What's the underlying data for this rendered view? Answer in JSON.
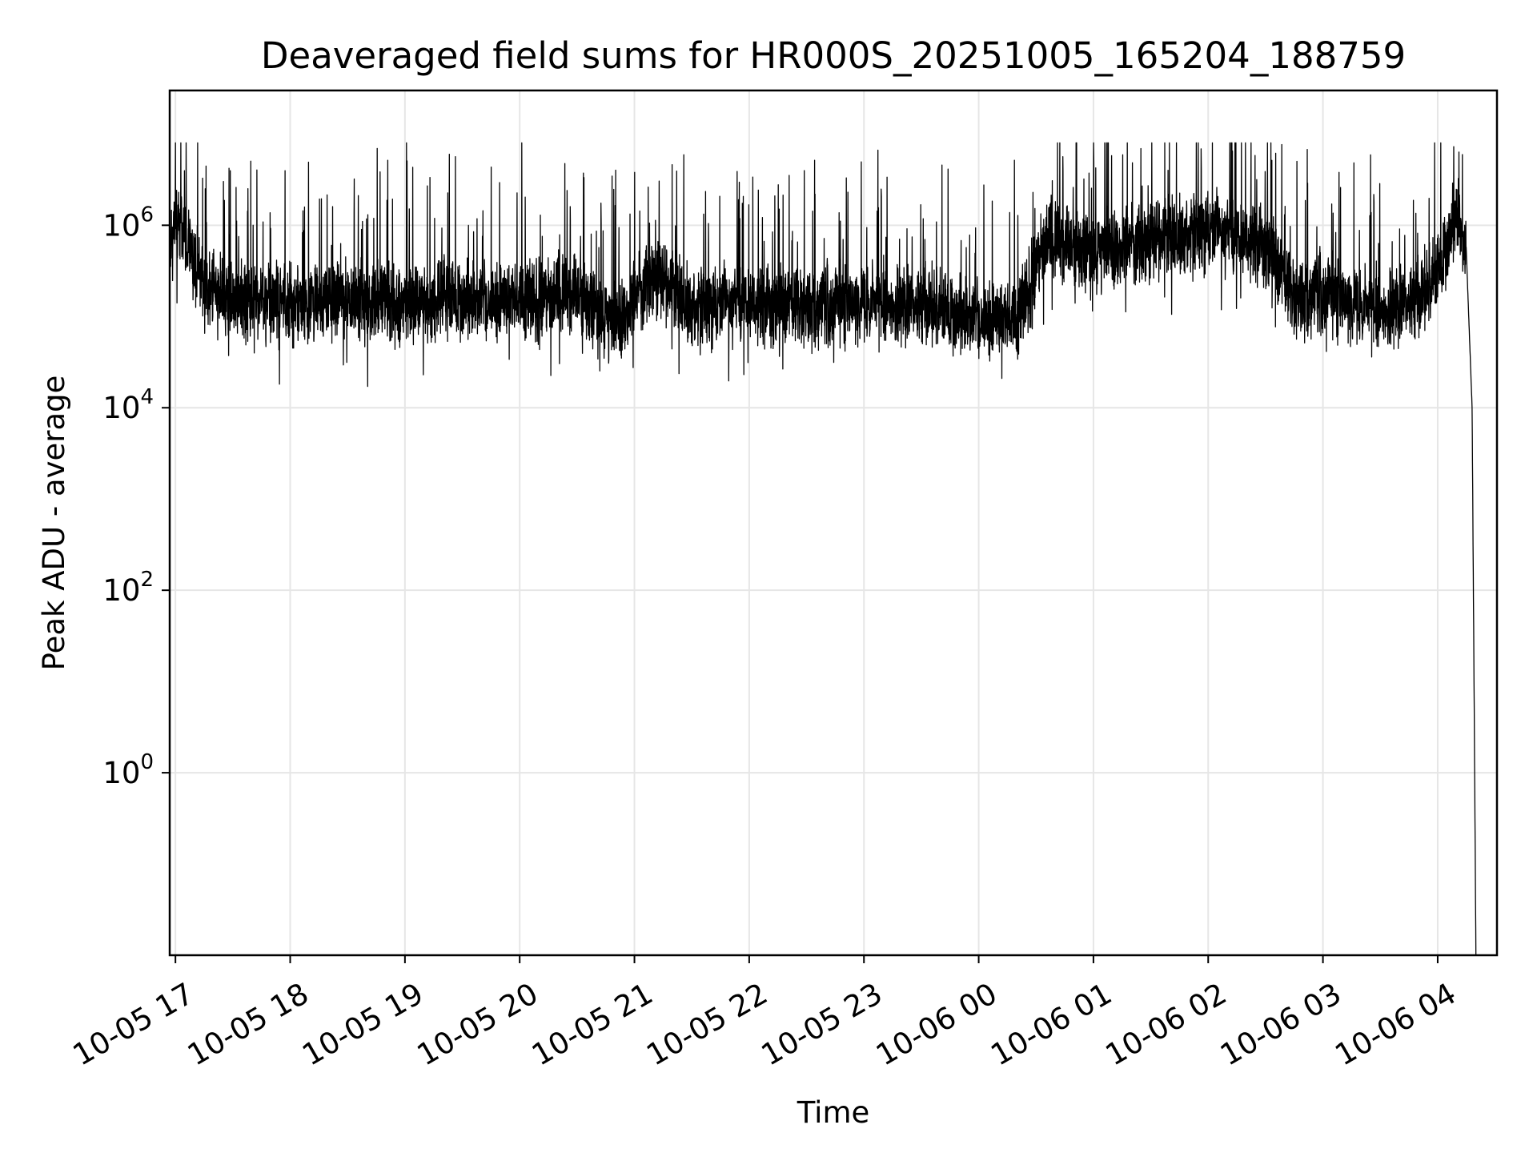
{
  "chart_data": {
    "type": "line",
    "title": "Deaveraged field sums for HR000S_20251005_165204_188759",
    "xlabel": "Time",
    "ylabel": "Peak ADU - average",
    "yscale": "log",
    "grid": true,
    "legend": "none",
    "line_color": "#000000",
    "xlim": [
      "2025-10-05 16:57",
      "2025-10-06 04:31"
    ],
    "ylim": [
      0.01,
      30000000
    ],
    "x_ticks": [
      {
        "value": "2025-10-05 17:00",
        "label": "10-05 17"
      },
      {
        "value": "2025-10-05 18:00",
        "label": "10-05 18"
      },
      {
        "value": "2025-10-05 19:00",
        "label": "10-05 19"
      },
      {
        "value": "2025-10-05 20:00",
        "label": "10-05 20"
      },
      {
        "value": "2025-10-05 21:00",
        "label": "10-05 21"
      },
      {
        "value": "2025-10-05 22:00",
        "label": "10-05 22"
      },
      {
        "value": "2025-10-05 23:00",
        "label": "10-05 23"
      },
      {
        "value": "2025-10-06 00:00",
        "label": "10-06 00"
      },
      {
        "value": "2025-10-06 01:00",
        "label": "10-06 01"
      },
      {
        "value": "2025-10-06 02:00",
        "label": "10-06 02"
      },
      {
        "value": "2025-10-06 03:00",
        "label": "10-06 03"
      },
      {
        "value": "2025-10-06 04:00",
        "label": "10-06 04"
      }
    ],
    "y_ticks": [
      {
        "value": 1,
        "base": "10",
        "exp": "0"
      },
      {
        "value": 100,
        "base": "10",
        "exp": "2"
      },
      {
        "value": 10000,
        "base": "10",
        "exp": "4"
      },
      {
        "value": 1000000,
        "base": "10",
        "exp": "6"
      }
    ],
    "series": [
      {
        "points": [
          [
            "2025-10-05 16:57",
            600000
          ],
          [
            "2025-10-05 17:00",
            1000000
          ],
          [
            "2025-10-05 17:05",
            800000
          ],
          [
            "2025-10-05 17:15",
            200000
          ],
          [
            "2025-10-05 17:30",
            150000
          ],
          [
            "2025-10-05 18:00",
            140000
          ],
          [
            "2025-10-05 18:30",
            150000
          ],
          [
            "2025-10-05 19:00",
            140000
          ],
          [
            "2025-10-05 19:30",
            160000
          ],
          [
            "2025-10-05 20:00",
            150000
          ],
          [
            "2025-10-05 20:30",
            180000
          ],
          [
            "2025-10-05 20:50",
            80000
          ],
          [
            "2025-10-05 21:10",
            300000
          ],
          [
            "2025-10-05 21:30",
            130000
          ],
          [
            "2025-10-05 22:00",
            140000
          ],
          [
            "2025-10-05 22:30",
            120000
          ],
          [
            "2025-10-05 23:00",
            150000
          ],
          [
            "2025-10-05 23:30",
            130000
          ],
          [
            "2025-10-06 00:00",
            100000
          ],
          [
            "2025-10-06 00:20",
            90000
          ],
          [
            "2025-10-06 00:35",
            700000
          ],
          [
            "2025-10-06 01:00",
            500000
          ],
          [
            "2025-10-06 01:30",
            700000
          ],
          [
            "2025-10-06 02:00",
            900000
          ],
          [
            "2025-10-06 02:30",
            600000
          ],
          [
            "2025-10-06 02:45",
            150000
          ],
          [
            "2025-10-06 03:00",
            180000
          ],
          [
            "2025-10-06 03:30",
            120000
          ],
          [
            "2025-10-06 03:50",
            150000
          ],
          [
            "2025-10-06 04:00",
            300000
          ],
          [
            "2025-10-06 04:10",
            1500000
          ],
          [
            "2025-10-06 04:15",
            500000
          ],
          [
            "2025-10-06 04:18",
            10000
          ],
          [
            "2025-10-06 04:20",
            0.01
          ]
        ],
        "noise_amplitude_decades": 0.35,
        "spike_max": 8000000
      }
    ]
  }
}
